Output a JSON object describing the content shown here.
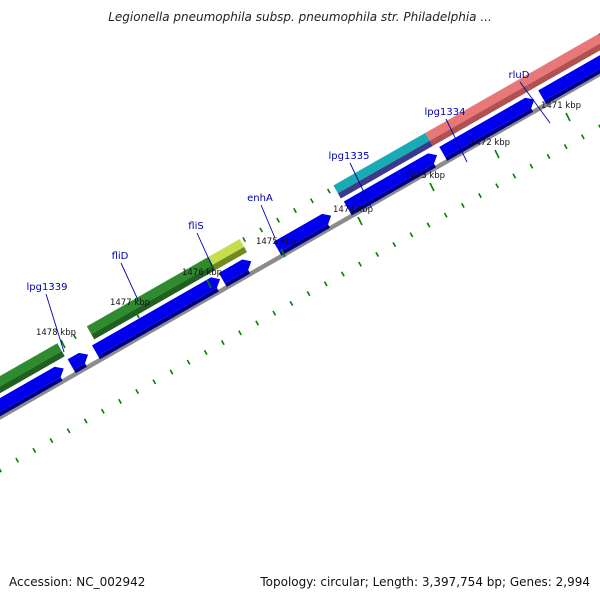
{
  "title": "Legionella pneumophila subsp. pneumophila str. Philadelphia ...",
  "footer": {
    "accession": "Accession: NC_002942",
    "summary": "Topology: circular; Length: 3,397,754 bp; Genes: 2,994"
  },
  "kbp_ticks": [
    {
      "label": "1478 kbp",
      "kbp": 1478
    },
    {
      "label": "1477 kbp",
      "kbp": 1477
    },
    {
      "label": "1476 kbp",
      "kbp": 1476
    },
    {
      "label": "1475 kbp",
      "kbp": 1475
    },
    {
      "label": "1474 kbp",
      "kbp": 1474
    },
    {
      "label": "1473 kbp",
      "kbp": 1473
    },
    {
      "label": "1472 kbp",
      "kbp": 1472
    },
    {
      "label": "1471 kbp",
      "kbp": 1471
    }
  ],
  "gene_labels": [
    {
      "name": "lpg1339"
    },
    {
      "name": "fliD"
    },
    {
      "name": "fliS"
    },
    {
      "name": "enhA"
    },
    {
      "name": "lpg1335"
    },
    {
      "name": "lpg1334"
    },
    {
      "name": "rluD"
    }
  ],
  "colors": {
    "label": "#0000aa",
    "tick": "#008000",
    "cds": "#0000ee",
    "backbone": "#8c8c8c",
    "feature_green": "#2e8b2e",
    "feature_yellow": "#c8dc50",
    "feature_teal": "#1aaab4",
    "feature_pink": "#e87878",
    "feature_dark": "#555555"
  }
}
